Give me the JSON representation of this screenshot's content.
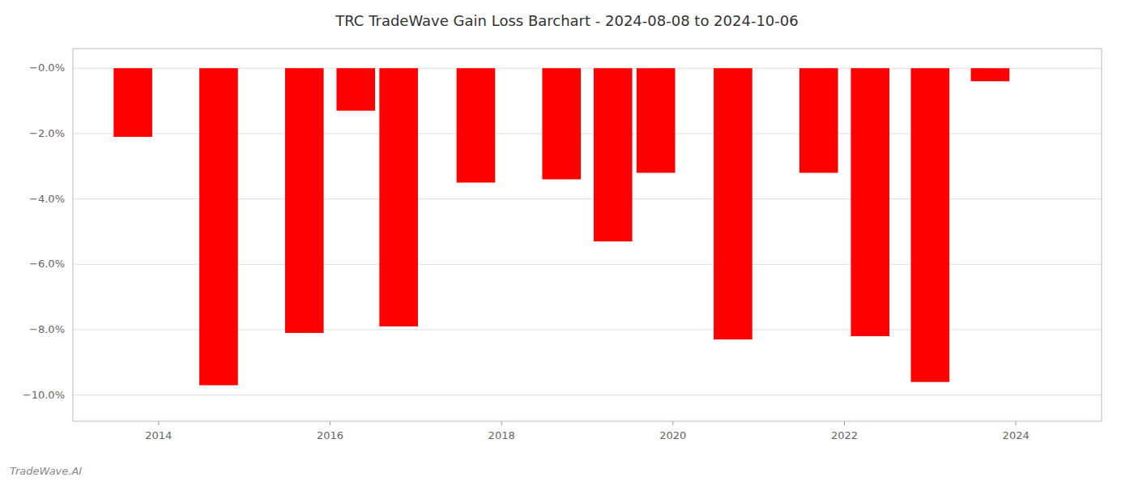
{
  "chart_data": {
    "type": "bar",
    "title": "TRC TradeWave Gain Loss Barchart - 2024-08-08 to 2024-10-06",
    "annotations": [
      "TradeWave.AI"
    ],
    "x": [
      2013.7,
      2014.7,
      2015.7,
      2016.3,
      2016.8,
      2017.7,
      2018.7,
      2019.3,
      2019.8,
      2020.7,
      2021.7,
      2022.3,
      2023.0,
      2023.7
    ],
    "values": [
      -2.1,
      -9.7,
      -8.1,
      -1.3,
      -7.9,
      -3.5,
      -3.4,
      -5.3,
      -3.2,
      -8.3,
      -3.2,
      -8.2,
      -9.6,
      -0.4
    ],
    "color": "#ff0000",
    "xlim": [
      2013.0,
      2025.0
    ],
    "xticks": [
      2014,
      2016,
      2018,
      2020,
      2022,
      2024
    ],
    "ylim": [
      -10.8,
      0.6
    ],
    "yticks": [
      {
        "value": 0.0,
        "label": "−0.0%"
      },
      {
        "value": -2.0,
        "label": "−2.0%"
      },
      {
        "value": -4.0,
        "label": "−4.0%"
      },
      {
        "value": -6.0,
        "label": "−6.0%"
      },
      {
        "value": -8.0,
        "label": "−8.0%"
      },
      {
        "value": -10.0,
        "label": "−10.0%"
      }
    ],
    "grid": true
  }
}
